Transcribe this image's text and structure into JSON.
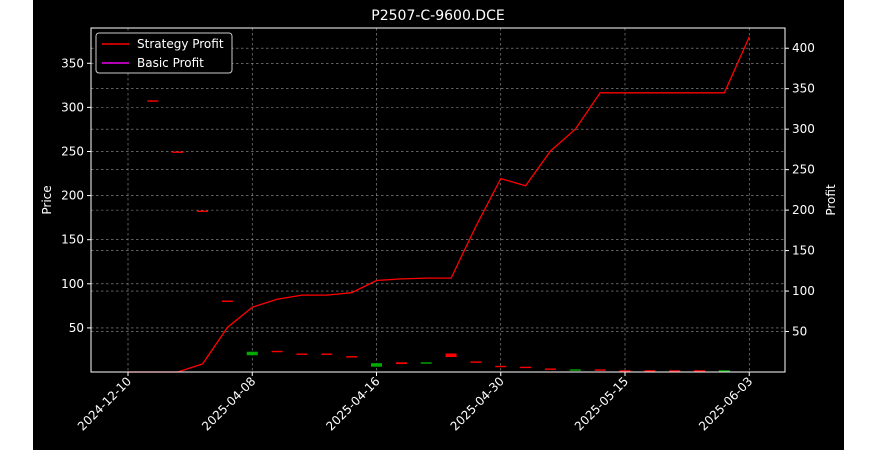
{
  "chart_data": {
    "type": "line",
    "title": "P2507-C-9600.DCE",
    "ylabel_left": "Price",
    "ylabel_right": "Profit",
    "xlabel": "",
    "grid": true,
    "legend_position": "top-left",
    "background": "#000000",
    "x_ticks": [
      "2024-12-10",
      "2025-04-08",
      "2025-04-16",
      "2025-04-30",
      "2025-05-15",
      "2025-06-03"
    ],
    "left_axis": {
      "ylim": [
        0,
        390
      ],
      "ticks": [
        50,
        100,
        150,
        200,
        250,
        300,
        350
      ]
    },
    "right_axis": {
      "ylim": [
        0,
        425
      ],
      "ticks": [
        50,
        100,
        150,
        200,
        250,
        300,
        350,
        400
      ]
    },
    "series": [
      {
        "name": "Strategy Profit",
        "axis": "right",
        "color": "#ff0000",
        "values": [
          0,
          0,
          0,
          10,
          55,
          80,
          90,
          95,
          95,
          98,
          113,
          115,
          116,
          116,
          180,
          239,
          230,
          273,
          300,
          345,
          345,
          345,
          345,
          345,
          345,
          414
        ]
      },
      {
        "name": "Basic Profit",
        "axis": "right",
        "color": "#ee00ee",
        "values": [
          0,
          0,
          0,
          0,
          0,
          0,
          0,
          0,
          0,
          0,
          0,
          0,
          0,
          0,
          0,
          0,
          0,
          0,
          0,
          0,
          0,
          0,
          0,
          0,
          0,
          0
        ]
      }
    ],
    "candles": {
      "axis": "left",
      "up_color": "#00aa00",
      "down_color": "#ff0000",
      "items": [
        {
          "i": 1,
          "open": 308,
          "close": 307
        },
        {
          "i": 2,
          "open": 250,
          "close": 249
        },
        {
          "i": 3,
          "open": 183,
          "close": 182
        },
        {
          "i": 4,
          "open": 81,
          "close": 80
        },
        {
          "i": 5,
          "open": 19,
          "close": 23
        },
        {
          "i": 6,
          "open": 24,
          "close": 23
        },
        {
          "i": 7,
          "open": 21,
          "close": 20
        },
        {
          "i": 8,
          "open": 21,
          "close": 20
        },
        {
          "i": 9,
          "open": 18,
          "close": 17
        },
        {
          "i": 10,
          "open": 6,
          "close": 10
        },
        {
          "i": 11,
          "open": 11,
          "close": 9
        },
        {
          "i": 12,
          "open": 10,
          "close": 11
        },
        {
          "i": 13,
          "open": 21,
          "close": 17
        },
        {
          "i": 14,
          "open": 12,
          "close": 11
        },
        {
          "i": 15,
          "open": 7,
          "close": 6
        },
        {
          "i": 16,
          "open": 6,
          "close": 5
        },
        {
          "i": 17,
          "open": 4,
          "close": 3
        },
        {
          "i": 18,
          "open": 2,
          "close": 3
        },
        {
          "i": 19,
          "open": 3,
          "close": 2
        },
        {
          "i": 20,
          "open": 2,
          "close": 1
        },
        {
          "i": 21,
          "open": 2,
          "close": 1
        },
        {
          "i": 22,
          "open": 2,
          "close": 1
        },
        {
          "i": 23,
          "open": 2,
          "close": 1
        },
        {
          "i": 24,
          "open": 1,
          "close": 2
        }
      ]
    }
  }
}
